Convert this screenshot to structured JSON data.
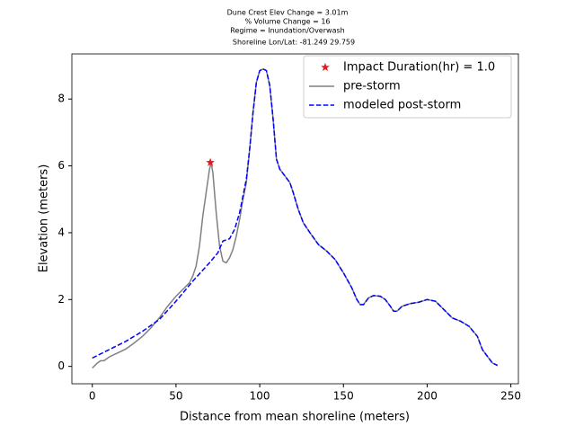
{
  "chart_data": {
    "type": "line",
    "title": [
      "Dune Crest Elev Change = 3.01m",
      "% Volume Change = 16",
      "Regime = Inundation/Overwash",
      "Shoreline Lon/Lat: -81.249 29.759"
    ],
    "xlabel": "Distance from mean shoreline (meters)",
    "ylabel": "Elevation (meters)",
    "xlim": [
      -12.2,
      254.5
    ],
    "ylim": [
      -0.52,
      9.35
    ],
    "xticks": [
      0,
      50,
      100,
      150,
      200,
      250
    ],
    "yticks": [
      0,
      2,
      4,
      6,
      8
    ],
    "grid": false,
    "legend": "upper right",
    "series": [
      {
        "name": "Impact Duration(hr) = 1.0",
        "color": "#e41a1c",
        "style": "star",
        "x": [
          70.5
        ],
        "values": [
          6.1
        ]
      },
      {
        "name": "pre-storm",
        "color": "#808080",
        "style": "solid",
        "x": [
          0,
          3,
          5,
          7,
          10,
          15,
          20,
          25,
          30,
          35,
          40,
          45,
          50,
          55,
          58,
          60,
          62,
          64,
          66,
          68,
          70,
          71,
          72,
          74,
          76,
          78,
          80,
          82,
          84,
          86,
          88,
          90,
          92,
          94,
          96,
          98,
          100,
          102,
          104,
          106,
          108,
          110,
          112,
          115,
          118,
          120,
          123,
          126,
          130,
          135,
          140,
          145,
          150,
          155,
          158,
          160,
          162,
          165,
          168,
          172,
          175,
          178,
          180,
          182,
          185,
          190,
          195,
          200,
          205,
          210,
          215,
          220,
          225,
          230,
          233,
          236,
          239,
          242
        ],
        "values": [
          -0.05,
          0.1,
          0.17,
          0.17,
          0.28,
          0.4,
          0.52,
          0.7,
          0.9,
          1.15,
          1.45,
          1.8,
          2.1,
          2.35,
          2.5,
          2.7,
          3.0,
          3.6,
          4.5,
          5.2,
          5.9,
          6.1,
          5.8,
          4.6,
          3.6,
          3.15,
          3.1,
          3.25,
          3.5,
          3.9,
          4.4,
          5.0,
          5.5,
          6.5,
          7.6,
          8.5,
          8.85,
          8.9,
          8.85,
          8.4,
          7.4,
          6.2,
          5.9,
          5.7,
          5.5,
          5.2,
          4.7,
          4.3,
          4.0,
          3.65,
          3.45,
          3.2,
          2.8,
          2.35,
          2.0,
          1.85,
          1.85,
          2.05,
          2.12,
          2.1,
          2.0,
          1.8,
          1.65,
          1.65,
          1.8,
          1.88,
          1.92,
          2.0,
          1.95,
          1.7,
          1.45,
          1.35,
          1.2,
          0.9,
          0.5,
          0.3,
          0.1,
          0.03
        ]
      },
      {
        "name": "modeled post-storm",
        "color": "#0000ff",
        "style": "dashed",
        "x": [
          0,
          10,
          20,
          30,
          40,
          50,
          60,
          70,
          75,
          78,
          82,
          85,
          88,
          92,
          94,
          96,
          98,
          100,
          102,
          104,
          106,
          108,
          110,
          112,
          115,
          118,
          120,
          123,
          126,
          130,
          135,
          140,
          145,
          150,
          155,
          158,
          160,
          162,
          165,
          168,
          172,
          175,
          178,
          180,
          182,
          185,
          190,
          195,
          200,
          205,
          210,
          215,
          220,
          225,
          230,
          233,
          236,
          239,
          242
        ],
        "values": [
          0.25,
          0.5,
          0.75,
          1.05,
          1.4,
          1.95,
          2.55,
          3.1,
          3.4,
          3.75,
          3.82,
          4.1,
          4.6,
          5.6,
          6.5,
          7.6,
          8.5,
          8.85,
          8.9,
          8.85,
          8.4,
          7.4,
          6.2,
          5.9,
          5.7,
          5.5,
          5.2,
          4.7,
          4.3,
          4.0,
          3.65,
          3.45,
          3.2,
          2.8,
          2.35,
          2.0,
          1.85,
          1.85,
          2.05,
          2.12,
          2.1,
          2.0,
          1.8,
          1.65,
          1.65,
          1.8,
          1.88,
          1.92,
          2.0,
          1.95,
          1.7,
          1.45,
          1.35,
          1.2,
          0.9,
          0.5,
          0.3,
          0.1,
          0.03
        ]
      }
    ]
  }
}
